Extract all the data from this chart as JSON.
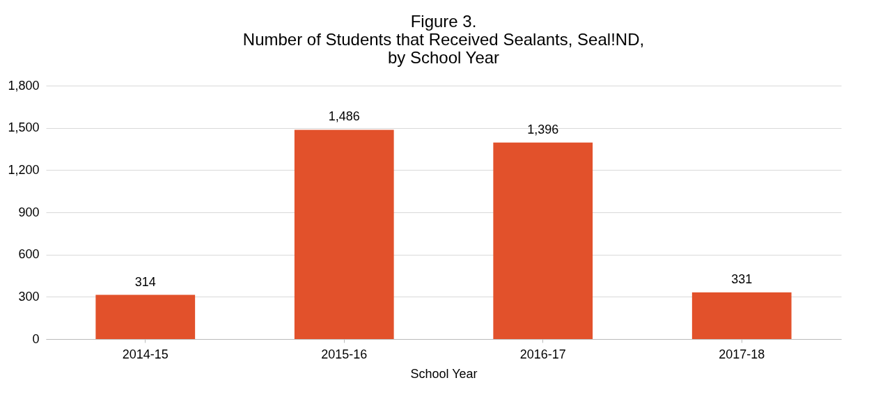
{
  "chart_data": {
    "type": "bar",
    "title": "Figure 3.\nNumber of Students that Received Sealants, Seal!ND,\nby School Year",
    "xlabel": "School Year",
    "categories": [
      "2014-15",
      "2015-16",
      "2016-17",
      "2017-18"
    ],
    "values": [
      314,
      1486,
      1396,
      331
    ],
    "color": "#e2512b",
    "ylim": [
      0,
      1800
    ],
    "yticks": [
      {
        "value": 0,
        "label": "0"
      },
      {
        "value": 300,
        "label": "300"
      },
      {
        "value": 600,
        "label": "600"
      },
      {
        "value": 900,
        "label": "900"
      },
      {
        "value": 1200,
        "label": "1,200"
      },
      {
        "value": 1500,
        "label": "1,500"
      },
      {
        "value": 1800,
        "label": "1,800"
      }
    ],
    "grid": "y",
    "value_labels": [
      "314",
      "1,486",
      "1,396",
      "331"
    ]
  }
}
